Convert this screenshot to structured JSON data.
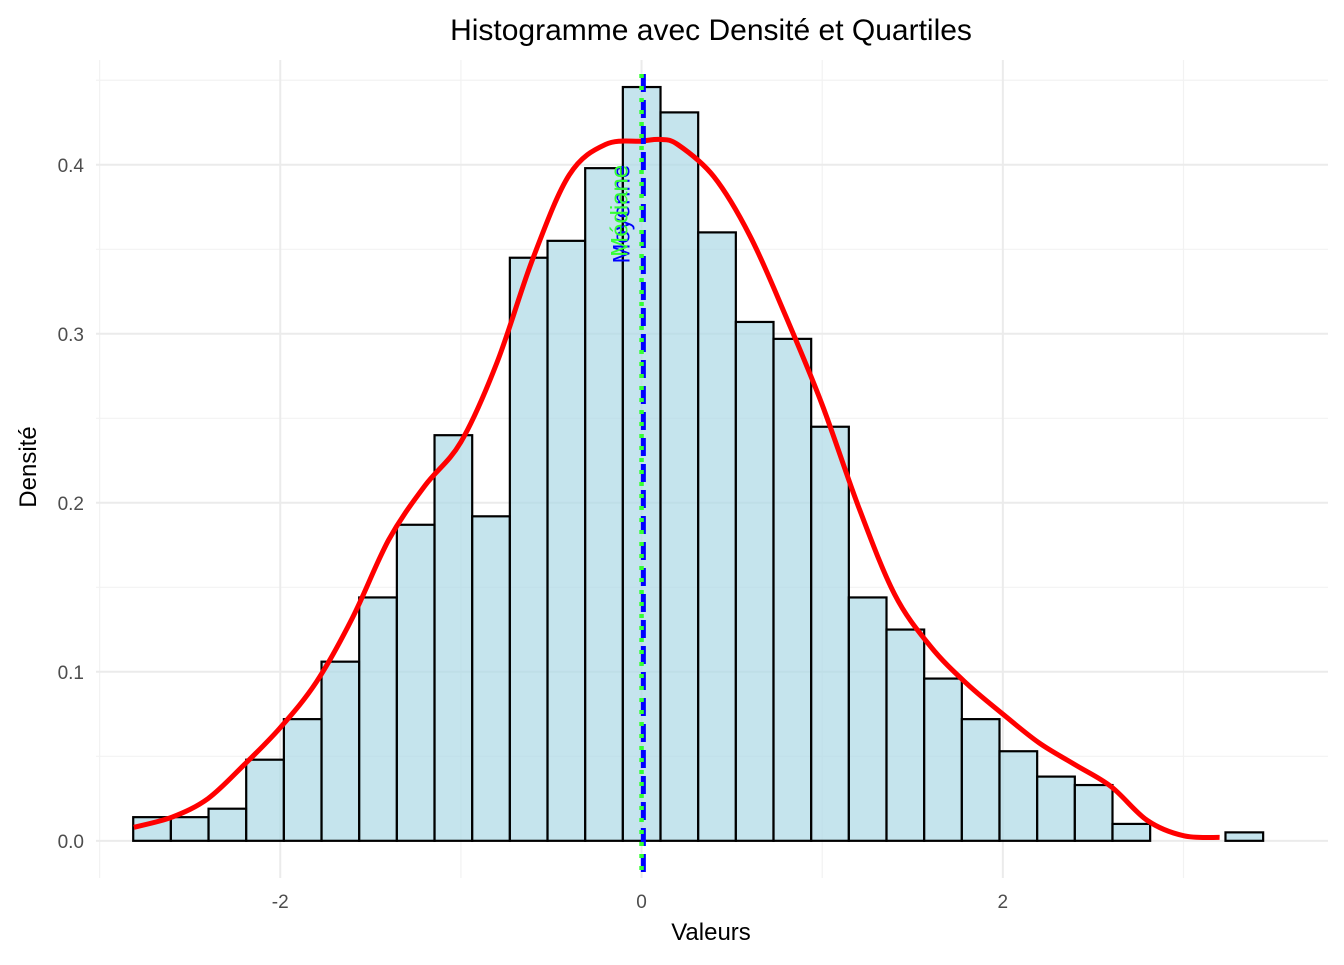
{
  "chart_data": {
    "type": "bar",
    "title": "Histogramme avec Densité et Quartiles",
    "xlabel": "Valeurs",
    "ylabel": "Densité",
    "xlim": [
      -3.02,
      3.8
    ],
    "ylim": [
      -0.022,
      0.462
    ],
    "x_ticks": [
      -2,
      0,
      2
    ],
    "x_tick_labels": [
      "-2",
      "0",
      "2"
    ],
    "y_ticks": [
      0.0,
      0.1,
      0.2,
      0.3,
      0.4
    ],
    "y_tick_labels": [
      "0.0",
      "0.1",
      "0.2",
      "0.3",
      "0.4"
    ],
    "grid": true,
    "bin_width": 0.2085,
    "bin_start": -2.814,
    "bar_fill": "#add8e6",
    "bar_stroke": "#000000",
    "values": [
      0.014,
      0.014,
      0.019,
      0.048,
      0.072,
      0.106,
      0.144,
      0.187,
      0.24,
      0.192,
      0.345,
      0.355,
      0.398,
      0.446,
      0.431,
      0.36,
      0.307,
      0.297,
      0.245,
      0.144,
      0.125,
      0.096,
      0.072,
      0.053,
      0.038,
      0.033,
      0.01,
      0.0,
      0.0,
      0.005
    ],
    "density": {
      "color": "#ff0000",
      "x": [
        -2.81,
        -2.6,
        -2.4,
        -2.2,
        -2.0,
        -1.8,
        -1.6,
        -1.4,
        -1.2,
        -1.0,
        -0.8,
        -0.6,
        -0.4,
        -0.2,
        0.0,
        0.1,
        0.2,
        0.4,
        0.6,
        0.8,
        1.0,
        1.2,
        1.4,
        1.6,
        1.8,
        2.0,
        2.2,
        2.4,
        2.6,
        2.8,
        3.0,
        3.2
      ],
      "y": [
        0.008,
        0.014,
        0.025,
        0.045,
        0.067,
        0.094,
        0.132,
        0.178,
        0.21,
        0.236,
        0.283,
        0.345,
        0.394,
        0.412,
        0.414,
        0.415,
        0.412,
        0.393,
        0.358,
        0.31,
        0.258,
        0.198,
        0.146,
        0.115,
        0.093,
        0.075,
        0.058,
        0.045,
        0.032,
        0.012,
        0.003,
        0.002
      ]
    },
    "reference_lines": [
      {
        "label": "Moyenne",
        "x": 0.01,
        "color": "#0000ff",
        "style": "dashed"
      },
      {
        "label": "Médiane",
        "x": 0.0,
        "color": "#33ff33",
        "style": "dotted"
      }
    ]
  }
}
